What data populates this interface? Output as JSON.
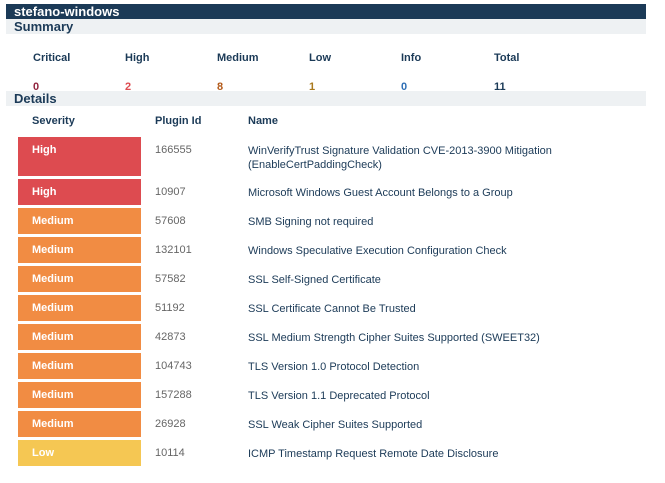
{
  "host": "stefano-windows",
  "summary": {
    "title": "Summary",
    "items": [
      {
        "label": "Critical",
        "value": "0",
        "color": "#91243e"
      },
      {
        "label": "High",
        "value": "2",
        "color": "#dd4b50"
      },
      {
        "label": "Medium",
        "value": "8",
        "color": "#b35a1a"
      },
      {
        "label": "Low",
        "value": "1",
        "color": "#a9791d"
      },
      {
        "label": "Info",
        "value": "0",
        "color": "#2f6fb5"
      },
      {
        "label": "Total",
        "value": "11",
        "color": "#1b3a57"
      }
    ]
  },
  "details": {
    "title": "Details",
    "headers": {
      "severity": "Severity",
      "plugin": "Plugin Id",
      "name": "Name"
    },
    "rows": [
      {
        "severity": "High",
        "plugin": "166555",
        "name": "WinVerifyTrust Signature Validation CVE-2013-3900 Mitigation (EnableCertPaddingCheck)",
        "color": "#dd4b50"
      },
      {
        "severity": "High",
        "plugin": "10907",
        "name": "Microsoft Windows Guest Account Belongs to a Group",
        "color": "#dd4b50"
      },
      {
        "severity": "Medium",
        "plugin": "57608",
        "name": "SMB Signing not required",
        "color": "#f18c43"
      },
      {
        "severity": "Medium",
        "plugin": "132101",
        "name": "Windows Speculative Execution Configuration Check",
        "color": "#f18c43"
      },
      {
        "severity": "Medium",
        "plugin": "57582",
        "name": "SSL Self-Signed Certificate",
        "color": "#f18c43"
      },
      {
        "severity": "Medium",
        "plugin": "51192",
        "name": "SSL Certificate Cannot Be Trusted",
        "color": "#f18c43"
      },
      {
        "severity": "Medium",
        "plugin": "42873",
        "name": "SSL Medium Strength Cipher Suites Supported (SWEET32)",
        "color": "#f18c43"
      },
      {
        "severity": "Medium",
        "plugin": "104743",
        "name": "TLS Version 1.0 Protocol Detection",
        "color": "#f18c43"
      },
      {
        "severity": "Medium",
        "plugin": "157288",
        "name": "TLS Version 1.1 Deprecated Protocol",
        "color": "#f18c43"
      },
      {
        "severity": "Medium",
        "plugin": "26928",
        "name": "SSL Weak Cipher Suites Supported",
        "color": "#f18c43"
      },
      {
        "severity": "Low",
        "plugin": "10114",
        "name": "ICMP Timestamp Request Remote Date Disclosure",
        "color": "#f5c753"
      }
    ]
  }
}
